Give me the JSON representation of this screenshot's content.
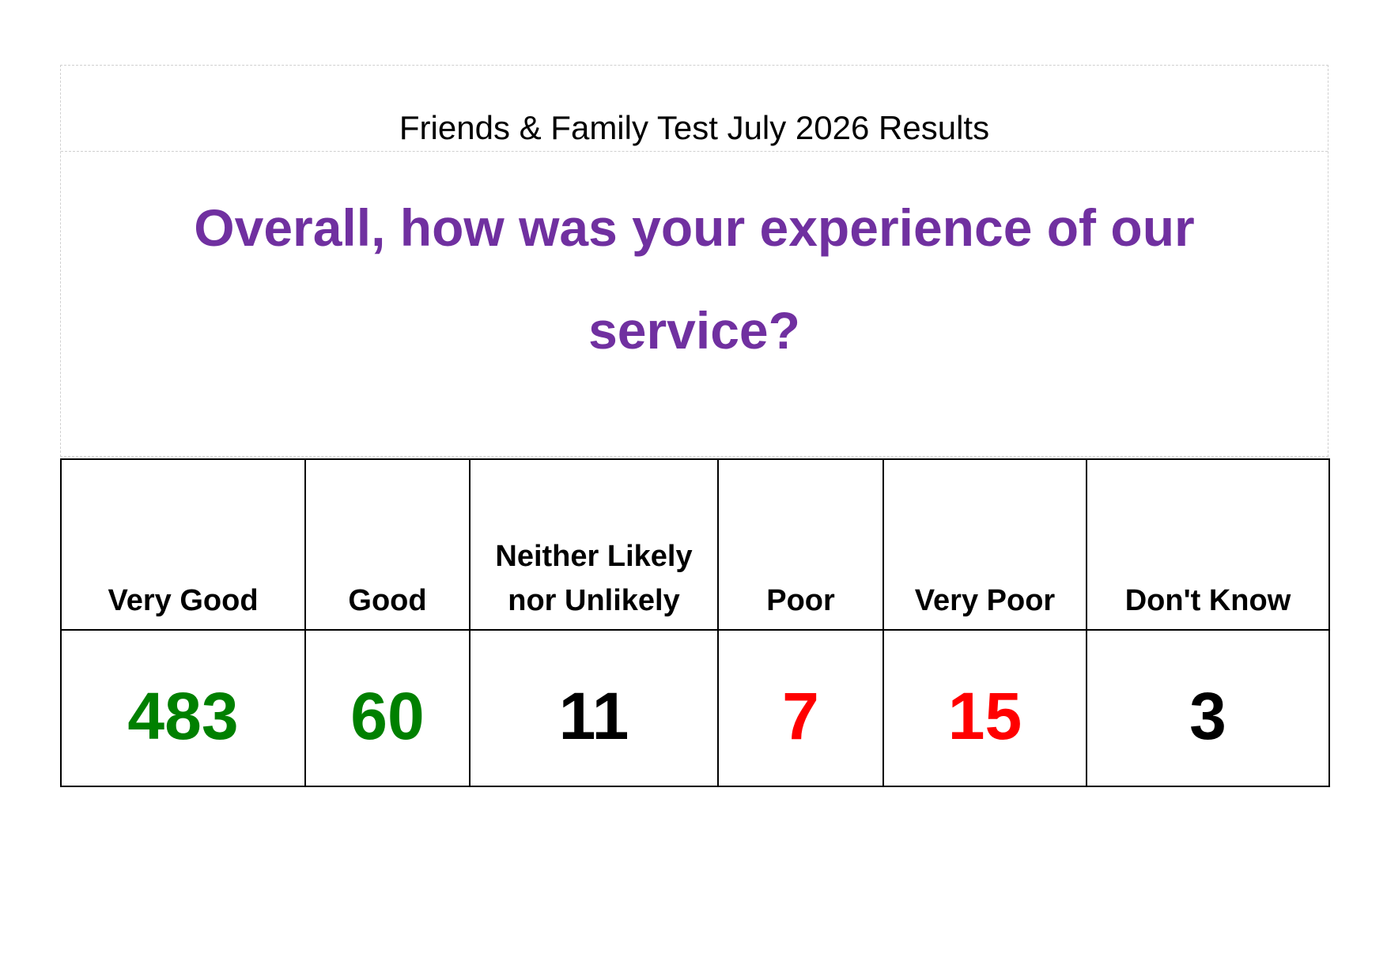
{
  "header": {
    "title": "Friends & Family Test July 2026 Results",
    "question": "Overall, how was your experience of our service?"
  },
  "table": {
    "columns": [
      {
        "label": "Very Good",
        "value": "483",
        "color": "#008000"
      },
      {
        "label": "Good",
        "value": "60",
        "color": "#008000"
      },
      {
        "label": "Neither Likely nor Unlikely",
        "value": "11",
        "color": "#000000"
      },
      {
        "label": "Poor",
        "value": "7",
        "color": "#ff0000"
      },
      {
        "label": "Very Poor",
        "value": "15",
        "color": "#ff0000"
      },
      {
        "label": "Don't Know",
        "value": "3",
        "color": "#000000"
      }
    ]
  }
}
